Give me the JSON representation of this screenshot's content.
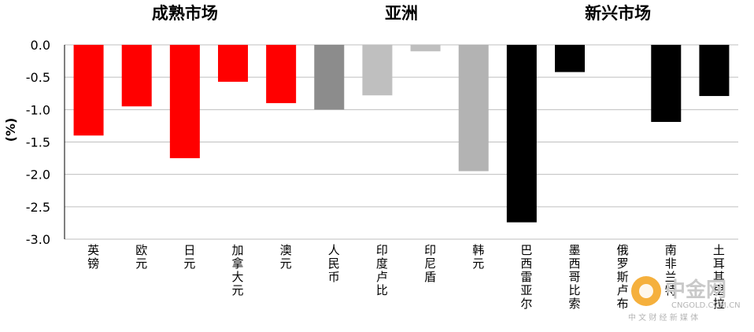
{
  "chart_data": {
    "type": "bar",
    "ylabel": "(%)",
    "ylim": [
      -3.0,
      0.0
    ],
    "yticks": [
      0.0,
      -0.5,
      -1.0,
      -1.5,
      -2.0,
      -2.5,
      -3.0
    ],
    "ytick_labels": [
      "0.0",
      "-0.5",
      "-1.0",
      "-1.5",
      "-2.0",
      "-2.5",
      "-3.0"
    ],
    "grid": true,
    "groups": [
      {
        "title": "成熟市场",
        "members": [
          "英镑",
          "欧元",
          "日元",
          "加拿大元",
          "澳元"
        ]
      },
      {
        "title": "亚洲",
        "members": [
          "人民币",
          "印度卢比",
          "印尼盾",
          "韩元"
        ]
      },
      {
        "title": "新兴市场",
        "members": [
          "巴西雷亚尔",
          "墨西哥比索",
          "俄罗斯卢布",
          "南非兰特",
          "土耳其里拉"
        ]
      }
    ],
    "categories": [
      "英镑",
      "欧元",
      "日元",
      "加拿大元",
      "澳元",
      "人民币",
      "印度卢比",
      "印尼盾",
      "韩元",
      "巴西雷亚尔",
      "墨西哥比索",
      "俄罗斯卢布",
      "南非兰特",
      "土耳其里拉"
    ],
    "values": [
      -1.4,
      -0.95,
      -1.75,
      -0.57,
      -0.9,
      -1.0,
      -0.78,
      -0.1,
      -1.95,
      -2.74,
      -0.42,
      0.0,
      -1.19,
      -0.79
    ],
    "colors": [
      "#ff0000",
      "#ff0000",
      "#ff0000",
      "#ff0000",
      "#ff0000",
      "#8c8c8c",
      "#bfbfbf",
      "#bfbfbf",
      "#b3b3b3",
      "#000000",
      "#000000",
      "#000000",
      "#000000",
      "#000000"
    ]
  },
  "watermark": {
    "brand": "中金网",
    "domain": "CNGOLD.COM.CN",
    "slogan": "中 文 财 经 新 媒 体"
  }
}
